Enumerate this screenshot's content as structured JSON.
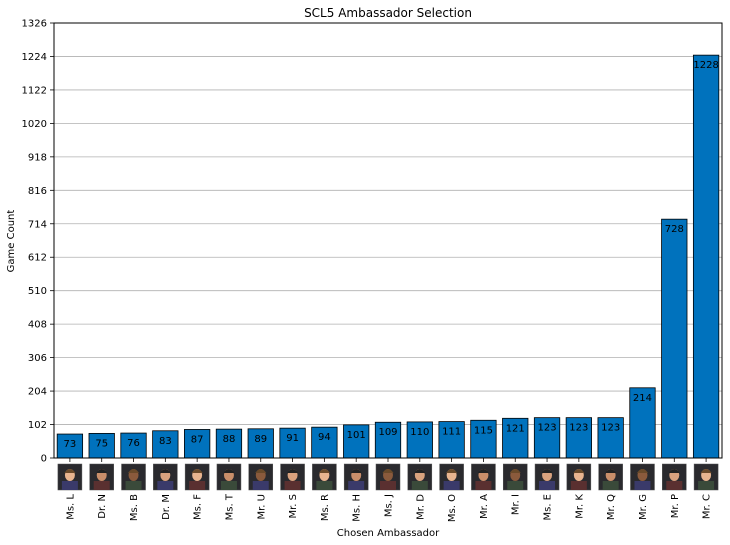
{
  "chart_data": {
    "type": "bar",
    "title": "SCL5 Ambassador Selection",
    "xlabel": "Chosen Ambassador",
    "ylabel": "Game Count",
    "categories": [
      "Ms. L",
      "Dr. N",
      "Ms. B",
      "Dr. M",
      "Ms. F",
      "Ms. T",
      "Mr. U",
      "Mr. S",
      "Ms. R",
      "Ms. H",
      "Ms. J",
      "Mr. D",
      "Ms. O",
      "Mr. A",
      "Mr. I",
      "Ms. E",
      "Mr. K",
      "Mr. Q",
      "Mr. G",
      "Mr. P",
      "Mr. C"
    ],
    "values": [
      73,
      75,
      76,
      83,
      87,
      88,
      89,
      91,
      94,
      101,
      109,
      110,
      111,
      115,
      121,
      123,
      123,
      123,
      214,
      728,
      1228
    ],
    "ylim": [
      0,
      1326
    ],
    "yticks": [
      0,
      102,
      204,
      306,
      408,
      510,
      612,
      714,
      816,
      918,
      1020,
      1122,
      1224,
      1326
    ],
    "grid": "horizontal",
    "bar_color": "#0072bd",
    "bar_edge_color": "#000000",
    "portrait_icons": [
      "woman-blonde-portrait-icon",
      "man-suit-portrait-icon",
      "woman-dark-portrait-icon",
      "man-suit-portrait-icon",
      "woman-dark-portrait-icon",
      "woman-orange-portrait-icon",
      "man-white-hair-portrait-icon",
      "man-grey-portrait-icon",
      "woman-green-portrait-icon",
      "woman-curly-portrait-icon",
      "woman-purple-hat-portrait-icon",
      "man-suit-portrait-icon",
      "woman-red-portrait-icon",
      "man-dark-portrait-icon",
      "man-cap-portrait-icon",
      "woman-grey-portrait-icon",
      "man-red-turban-portrait-icon",
      "man-bald-portrait-icon",
      "man-green-hat-portrait-icon",
      "man-pink-hat-portrait-icon",
      "man-bearded-portrait-icon"
    ]
  }
}
